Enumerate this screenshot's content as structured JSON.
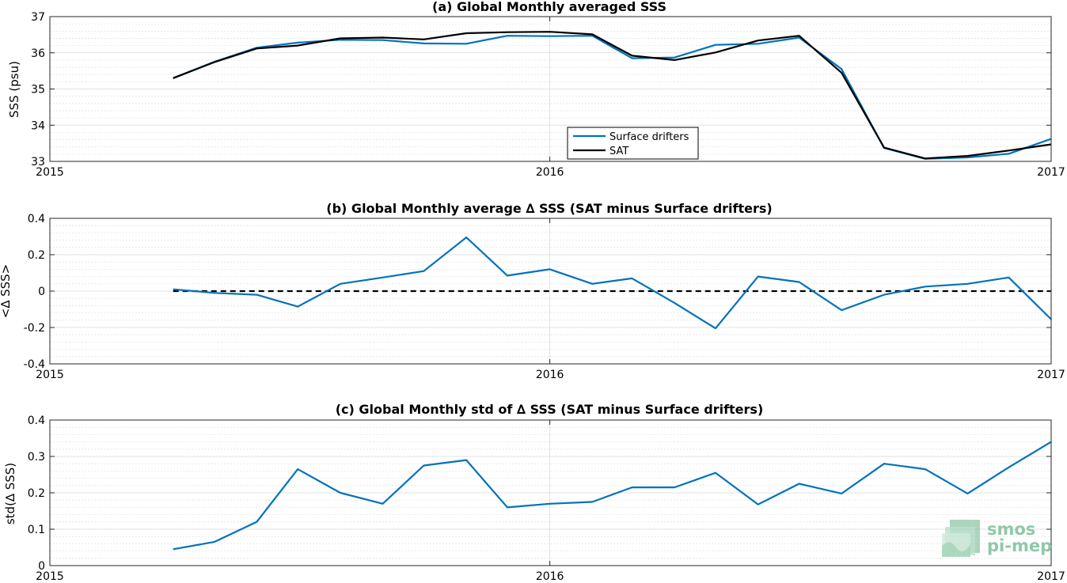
{
  "colors": {
    "drifters": "#0072bd",
    "sat": "#000000",
    "zero_line": "#000000",
    "grid": "#d9d9d9",
    "logo": "#8fc8a8"
  },
  "logo": {
    "line1": "smos",
    "line2": "pi-mep",
    "icon": "smos-wave-logo-icon"
  },
  "chart_data": [
    {
      "type": "line",
      "title": "(a) Global Monthly averaged SSS",
      "ylabel": "SSS (psu)",
      "xlim": [
        "2015-01-01",
        "2017-01-01"
      ],
      "ylim": [
        33,
        37
      ],
      "yticks": [
        "33",
        "34",
        "35",
        "36",
        "37"
      ],
      "xticks": [
        {
          "date": "2015-01-01",
          "label": "2015"
        },
        {
          "date": "2016-01-01",
          "label": "2016"
        },
        {
          "date": "2017-01-01",
          "label": "2017"
        }
      ],
      "grid": true,
      "legend": "bottom-center",
      "x": [
        "2015-04-01",
        "2015-05-01",
        "2015-06-01",
        "2015-07-01",
        "2015-08-01",
        "2015-09-01",
        "2015-10-01",
        "2015-11-01",
        "2015-12-01",
        "2016-01-01",
        "2016-02-01",
        "2016-03-01",
        "2016-04-01",
        "2016-05-01",
        "2016-06-01",
        "2016-07-01",
        "2016-08-01",
        "2016-09-01",
        "2016-10-01",
        "2016-11-01",
        "2016-12-01",
        "2017-01-01"
      ],
      "series": [
        {
          "name": "Surface drifters",
          "color": "#0072bd",
          "style": "solid",
          "values": [
            35.3,
            35.75,
            36.14,
            36.28,
            36.36,
            36.35,
            36.26,
            36.25,
            36.47,
            36.46,
            36.47,
            35.85,
            35.87,
            36.22,
            36.25,
            36.42,
            35.55,
            33.37,
            33.07,
            33.11,
            33.21,
            33.62
          ]
        },
        {
          "name": "SAT",
          "color": "#000000",
          "style": "solid",
          "values": [
            35.3,
            35.74,
            36.12,
            36.2,
            36.4,
            36.42,
            36.37,
            36.54,
            36.57,
            36.58,
            36.51,
            35.92,
            35.8,
            36.01,
            36.34,
            36.47,
            35.45,
            33.38,
            33.08,
            33.15,
            33.3,
            33.47
          ]
        }
      ]
    },
    {
      "type": "line",
      "title": "(b) Global Monthly average ∆ SSS (SAT minus Surface drifters)",
      "ylabel": "<∆ SSS>",
      "xlim": [
        "2015-01-01",
        "2017-01-01"
      ],
      "ylim": [
        -0.4,
        0.4
      ],
      "yticks": [
        "-0.4",
        "-0.2",
        "0",
        "0.2",
        "0.4"
      ],
      "xticks": [
        {
          "date": "2015-01-01",
          "label": "2015"
        },
        {
          "date": "2016-01-01",
          "label": "2016"
        },
        {
          "date": "2017-01-01",
          "label": "2017"
        }
      ],
      "grid": true,
      "zero_line": {
        "from": "2015-04-01",
        "to": "2017-01-01",
        "style": "dashed"
      },
      "x": [
        "2015-04-01",
        "2015-05-01",
        "2015-06-01",
        "2015-07-01",
        "2015-08-01",
        "2015-09-01",
        "2015-10-01",
        "2015-11-01",
        "2015-12-01",
        "2016-01-01",
        "2016-02-01",
        "2016-03-01",
        "2016-04-01",
        "2016-05-01",
        "2016-06-01",
        "2016-07-01",
        "2016-08-01",
        "2016-09-01",
        "2016-10-01",
        "2016-11-01",
        "2016-12-01",
        "2017-01-01"
      ],
      "series": [
        {
          "color": "#0072bd",
          "style": "solid",
          "values": [
            0.01,
            -0.01,
            -0.02,
            -0.085,
            0.04,
            0.075,
            0.11,
            0.295,
            0.085,
            0.12,
            0.04,
            0.07,
            -0.065,
            -0.205,
            0.08,
            0.05,
            -0.105,
            -0.02,
            0.025,
            0.04,
            0.075,
            -0.155
          ]
        }
      ]
    },
    {
      "type": "line",
      "title": "(c) Global Monthly std of ∆ SSS (SAT minus Surface drifters)",
      "ylabel": "std(∆ SSS)",
      "xlim": [
        "2015-01-01",
        "2017-01-01"
      ],
      "ylim": [
        0,
        0.4
      ],
      "yticks": [
        "0",
        "0.1",
        "0.2",
        "0.3",
        "0.4"
      ],
      "xticks": [
        {
          "date": "2015-01-01",
          "label": "2015"
        },
        {
          "date": "2016-01-01",
          "label": "2016"
        },
        {
          "date": "2017-01-01",
          "label": "2017"
        }
      ],
      "grid": true,
      "x": [
        "2015-04-01",
        "2015-05-01",
        "2015-06-01",
        "2015-07-01",
        "2015-08-01",
        "2015-09-01",
        "2015-10-01",
        "2015-11-01",
        "2015-12-01",
        "2016-01-01",
        "2016-02-01",
        "2016-03-01",
        "2016-04-01",
        "2016-05-01",
        "2016-06-01",
        "2016-07-01",
        "2016-08-01",
        "2016-09-01",
        "2016-10-01",
        "2016-11-01",
        "2016-12-01",
        "2017-01-01"
      ],
      "series": [
        {
          "color": "#0072bd",
          "style": "solid",
          "values": [
            0.045,
            0.065,
            0.12,
            0.265,
            0.2,
            0.17,
            0.275,
            0.29,
            0.16,
            0.17,
            0.175,
            0.215,
            0.215,
            0.255,
            0.168,
            0.225,
            0.198,
            0.28,
            0.265,
            0.198,
            0.27,
            0.34
          ]
        }
      ]
    }
  ]
}
